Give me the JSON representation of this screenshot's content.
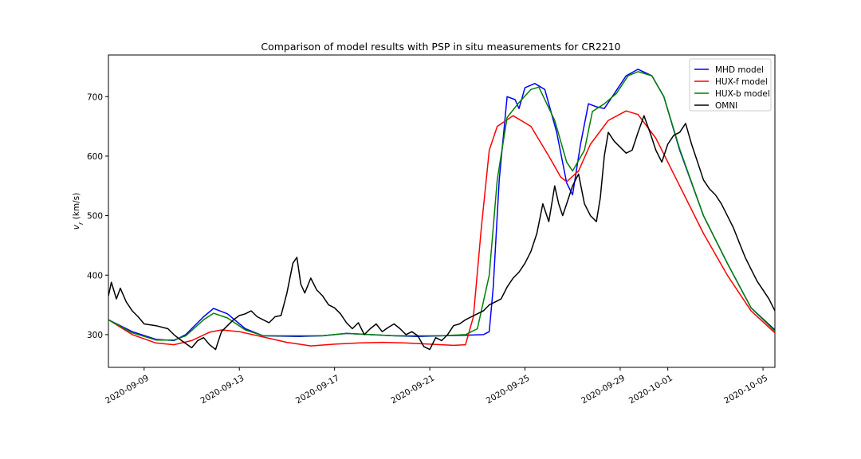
{
  "chart_data": {
    "type": "line",
    "title": "Comparison of model results with PSP in situ measurements for CR2210",
    "xlabel": "",
    "ylabel": "v_r (km/s)",
    "ylabel_main": "v",
    "ylabel_sub": "r",
    "ylabel_unit": " (km/s)",
    "xlim": [
      "2020-09-07T12:00",
      "2020-10-05T12:00"
    ],
    "ylim": [
      245,
      770
    ],
    "x_ticks": [
      "2020-09-09",
      "2020-09-13",
      "2020-09-17",
      "2020-09-21",
      "2020-09-25",
      "2020-09-29",
      "2020-10-01",
      "2020-10-05"
    ],
    "y_ticks": [
      300,
      400,
      500,
      600,
      700
    ],
    "grid": false,
    "legend_position": "top-right",
    "series": [
      {
        "name": "MHD model",
        "color": "#0000ff",
        "points": [
          [
            "2020-09-07T12:00",
            325
          ],
          [
            "2020-09-08T12:00",
            305
          ],
          [
            "2020-09-09T12:00",
            292
          ],
          [
            "2020-09-10T06:00",
            290
          ],
          [
            "2020-09-10T18:00",
            300
          ],
          [
            "2020-09-11T12:00",
            330
          ],
          [
            "2020-09-11T22:00",
            344
          ],
          [
            "2020-09-12T12:00",
            335
          ],
          [
            "2020-09-13T06:00",
            310
          ],
          [
            "2020-09-14T00:00",
            298
          ],
          [
            "2020-09-15T12:00",
            297
          ],
          [
            "2020-09-16T12:00",
            298
          ],
          [
            "2020-09-17T12:00",
            302
          ],
          [
            "2020-09-18T12:00",
            300
          ],
          [
            "2020-09-19T12:00",
            298
          ],
          [
            "2020-09-20T12:00",
            297
          ],
          [
            "2020-09-21T12:00",
            298
          ],
          [
            "2020-09-22T12:00",
            299
          ],
          [
            "2020-09-23T06:00",
            300
          ],
          [
            "2020-09-23T12:00",
            305
          ],
          [
            "2020-09-23T16:00",
            380
          ],
          [
            "2020-09-23T22:00",
            560
          ],
          [
            "2020-09-24T06:00",
            700
          ],
          [
            "2020-09-24T14:00",
            695
          ],
          [
            "2020-09-24T18:00",
            680
          ],
          [
            "2020-09-25T00:00",
            715
          ],
          [
            "2020-09-25T10:00",
            722
          ],
          [
            "2020-09-25T20:00",
            712
          ],
          [
            "2020-09-26T08:00",
            640
          ],
          [
            "2020-09-26T18:00",
            555
          ],
          [
            "2020-09-27T00:00",
            535
          ],
          [
            "2020-09-27T08:00",
            620
          ],
          [
            "2020-09-27T16:00",
            688
          ],
          [
            "2020-09-28T00:00",
            683
          ],
          [
            "2020-09-28T08:00",
            680
          ],
          [
            "2020-09-28T16:00",
            700
          ],
          [
            "2020-09-29T06:00",
            735
          ],
          [
            "2020-09-29T18:00",
            746
          ],
          [
            "2020-09-30T08:00",
            735
          ],
          [
            "2020-09-30T20:00",
            700
          ],
          [
            "2020-10-01T12:00",
            610
          ],
          [
            "2020-10-02T12:00",
            500
          ],
          [
            "2020-10-03T12:00",
            420
          ],
          [
            "2020-10-04T12:00",
            345
          ],
          [
            "2020-10-05T12:00",
            308
          ]
        ]
      },
      {
        "name": "HUX-f model",
        "color": "#ff0000",
        "points": [
          [
            "2020-09-07T12:00",
            325
          ],
          [
            "2020-09-08T12:00",
            300
          ],
          [
            "2020-09-09T12:00",
            286
          ],
          [
            "2020-09-10T06:00",
            283
          ],
          [
            "2020-09-11T00:00",
            290
          ],
          [
            "2020-09-11T18:00",
            304
          ],
          [
            "2020-09-12T06:00",
            308
          ],
          [
            "2020-09-13T00:00",
            305
          ],
          [
            "2020-09-14T00:00",
            296
          ],
          [
            "2020-09-15T00:00",
            287
          ],
          [
            "2020-09-16T00:00",
            281
          ],
          [
            "2020-09-17T00:00",
            284
          ],
          [
            "2020-09-18T00:00",
            286
          ],
          [
            "2020-09-19T00:00",
            287
          ],
          [
            "2020-09-20T00:00",
            286
          ],
          [
            "2020-09-21T00:00",
            284
          ],
          [
            "2020-09-22T00:00",
            282
          ],
          [
            "2020-09-22T12:00",
            283
          ],
          [
            "2020-09-22T20:00",
            330
          ],
          [
            "2020-09-23T04:00",
            480
          ],
          [
            "2020-09-23T12:00",
            610
          ],
          [
            "2020-09-23T20:00",
            650
          ],
          [
            "2020-09-24T12:00",
            668
          ],
          [
            "2020-09-25T06:00",
            650
          ],
          [
            "2020-09-26T00:00",
            600
          ],
          [
            "2020-09-26T12:00",
            565
          ],
          [
            "2020-09-26T18:00",
            557
          ],
          [
            "2020-09-27T06:00",
            575
          ],
          [
            "2020-09-27T18:00",
            620
          ],
          [
            "2020-09-28T12:00",
            660
          ],
          [
            "2020-09-29T06:00",
            676
          ],
          [
            "2020-09-29T18:00",
            670
          ],
          [
            "2020-09-30T12:00",
            630
          ],
          [
            "2020-10-01T12:00",
            550
          ],
          [
            "2020-10-02T12:00",
            470
          ],
          [
            "2020-10-03T12:00",
            400
          ],
          [
            "2020-10-04T12:00",
            340
          ],
          [
            "2020-10-05T12:00",
            303
          ]
        ]
      },
      {
        "name": "HUX-b model",
        "color": "#008000",
        "points": [
          [
            "2020-09-07T12:00",
            325
          ],
          [
            "2020-09-08T12:00",
            303
          ],
          [
            "2020-09-09T12:00",
            291
          ],
          [
            "2020-09-10T06:00",
            291
          ],
          [
            "2020-09-10T18:00",
            298
          ],
          [
            "2020-09-11T12:00",
            325
          ],
          [
            "2020-09-11T22:00",
            336
          ],
          [
            "2020-09-12T12:00",
            328
          ],
          [
            "2020-09-13T06:00",
            308
          ],
          [
            "2020-09-14T00:00",
            298
          ],
          [
            "2020-09-15T12:00",
            298
          ],
          [
            "2020-09-16T12:00",
            298
          ],
          [
            "2020-09-17T12:00",
            302
          ],
          [
            "2020-09-18T12:00",
            300
          ],
          [
            "2020-09-19T12:00",
            298
          ],
          [
            "2020-09-20T12:00",
            298
          ],
          [
            "2020-09-21T12:00",
            298
          ],
          [
            "2020-09-22T12:00",
            300
          ],
          [
            "2020-09-23T00:00",
            310
          ],
          [
            "2020-09-23T12:00",
            400
          ],
          [
            "2020-09-23T20:00",
            560
          ],
          [
            "2020-09-24T06:00",
            665
          ],
          [
            "2020-09-24T18:00",
            690
          ],
          [
            "2020-09-25T06:00",
            712
          ],
          [
            "2020-09-25T14:00",
            716
          ],
          [
            "2020-09-26T06:00",
            660
          ],
          [
            "2020-09-26T18:00",
            590
          ],
          [
            "2020-09-27T00:00",
            575
          ],
          [
            "2020-09-27T12:00",
            610
          ],
          [
            "2020-09-27T20:00",
            675
          ],
          [
            "2020-09-28T08:00",
            688
          ],
          [
            "2020-09-28T20:00",
            705
          ],
          [
            "2020-09-29T08:00",
            735
          ],
          [
            "2020-09-29T18:00",
            742
          ],
          [
            "2020-09-30T08:00",
            735
          ],
          [
            "2020-09-30T20:00",
            700
          ],
          [
            "2020-10-01T12:00",
            612
          ],
          [
            "2020-10-02T12:00",
            500
          ],
          [
            "2020-10-03T12:00",
            420
          ],
          [
            "2020-10-04T12:00",
            345
          ],
          [
            "2020-10-05T12:00",
            306
          ]
        ]
      },
      {
        "name": "OMNI",
        "color": "#000000",
        "points": [
          [
            "2020-09-07T12:00",
            365
          ],
          [
            "2020-09-07T15:00",
            388
          ],
          [
            "2020-09-07T20:00",
            360
          ],
          [
            "2020-09-08T00:00",
            378
          ],
          [
            "2020-09-08T06:00",
            355
          ],
          [
            "2020-09-08T12:00",
            340
          ],
          [
            "2020-09-08T18:00",
            330
          ],
          [
            "2020-09-09T00:00",
            318
          ],
          [
            "2020-09-09T12:00",
            315
          ],
          [
            "2020-09-10T00:00",
            310
          ],
          [
            "2020-09-10T06:00",
            300
          ],
          [
            "2020-09-10T12:00",
            292
          ],
          [
            "2020-09-10T18:00",
            285
          ],
          [
            "2020-09-11T00:00",
            278
          ],
          [
            "2020-09-11T06:00",
            290
          ],
          [
            "2020-09-11T12:00",
            295
          ],
          [
            "2020-09-11T18:00",
            283
          ],
          [
            "2020-09-12T00:00",
            275
          ],
          [
            "2020-09-12T06:00",
            305
          ],
          [
            "2020-09-12T12:00",
            315
          ],
          [
            "2020-09-12T18:00",
            325
          ],
          [
            "2020-09-13T00:00",
            332
          ],
          [
            "2020-09-13T06:00",
            335
          ],
          [
            "2020-09-13T12:00",
            340
          ],
          [
            "2020-09-13T18:00",
            330
          ],
          [
            "2020-09-14T00:00",
            325
          ],
          [
            "2020-09-14T06:00",
            320
          ],
          [
            "2020-09-14T12:00",
            330
          ],
          [
            "2020-09-14T18:00",
            332
          ],
          [
            "2020-09-15T00:00",
            370
          ],
          [
            "2020-09-15T06:00",
            420
          ],
          [
            "2020-09-15T10:00",
            430
          ],
          [
            "2020-09-15T14:00",
            385
          ],
          [
            "2020-09-15T18:00",
            370
          ],
          [
            "2020-09-16T00:00",
            395
          ],
          [
            "2020-09-16T06:00",
            375
          ],
          [
            "2020-09-16T12:00",
            365
          ],
          [
            "2020-09-16T18:00",
            350
          ],
          [
            "2020-09-17T00:00",
            345
          ],
          [
            "2020-09-17T06:00",
            335
          ],
          [
            "2020-09-17T12:00",
            320
          ],
          [
            "2020-09-17T18:00",
            310
          ],
          [
            "2020-09-18T00:00",
            320
          ],
          [
            "2020-09-18T06:00",
            300
          ],
          [
            "2020-09-18T12:00",
            310
          ],
          [
            "2020-09-18T18:00",
            318
          ],
          [
            "2020-09-19T00:00",
            305
          ],
          [
            "2020-09-19T06:00",
            312
          ],
          [
            "2020-09-19T12:00",
            318
          ],
          [
            "2020-09-19T18:00",
            310
          ],
          [
            "2020-09-20T00:00",
            300
          ],
          [
            "2020-09-20T06:00",
            305
          ],
          [
            "2020-09-20T12:00",
            298
          ],
          [
            "2020-09-20T18:00",
            280
          ],
          [
            "2020-09-21T00:00",
            275
          ],
          [
            "2020-09-21T06:00",
            295
          ],
          [
            "2020-09-21T12:00",
            290
          ],
          [
            "2020-09-21T18:00",
            300
          ],
          [
            "2020-09-22T00:00",
            315
          ],
          [
            "2020-09-22T06:00",
            318
          ],
          [
            "2020-09-22T12:00",
            325
          ],
          [
            "2020-09-22T18:00",
            330
          ],
          [
            "2020-09-23T00:00",
            335
          ],
          [
            "2020-09-23T06:00",
            340
          ],
          [
            "2020-09-23T12:00",
            350
          ],
          [
            "2020-09-23T18:00",
            355
          ],
          [
            "2020-09-24T00:00",
            360
          ],
          [
            "2020-09-24T06:00",
            380
          ],
          [
            "2020-09-24T12:00",
            395
          ],
          [
            "2020-09-24T18:00",
            405
          ],
          [
            "2020-09-25T00:00",
            420
          ],
          [
            "2020-09-25T06:00",
            440
          ],
          [
            "2020-09-25T12:00",
            470
          ],
          [
            "2020-09-25T18:00",
            520
          ],
          [
            "2020-09-26T00:00",
            490
          ],
          [
            "2020-09-26T06:00",
            550
          ],
          [
            "2020-09-26T10:00",
            520
          ],
          [
            "2020-09-26T14:00",
            500
          ],
          [
            "2020-09-26T18:00",
            520
          ],
          [
            "2020-09-27T00:00",
            550
          ],
          [
            "2020-09-27T06:00",
            570
          ],
          [
            "2020-09-27T12:00",
            520
          ],
          [
            "2020-09-27T18:00",
            500
          ],
          [
            "2020-09-28T00:00",
            490
          ],
          [
            "2020-09-28T04:00",
            530
          ],
          [
            "2020-09-28T08:00",
            600
          ],
          [
            "2020-09-28T12:00",
            640
          ],
          [
            "2020-09-28T18:00",
            625
          ],
          [
            "2020-09-29T00:00",
            615
          ],
          [
            "2020-09-29T06:00",
            605
          ],
          [
            "2020-09-29T12:00",
            610
          ],
          [
            "2020-09-29T18:00",
            640
          ],
          [
            "2020-09-30T00:00",
            668
          ],
          [
            "2020-09-30T06:00",
            640
          ],
          [
            "2020-09-30T12:00",
            610
          ],
          [
            "2020-09-30T18:00",
            590
          ],
          [
            "2020-10-01T00:00",
            620
          ],
          [
            "2020-10-01T06:00",
            635
          ],
          [
            "2020-10-01T12:00",
            640
          ],
          [
            "2020-10-01T18:00",
            655
          ],
          [
            "2020-10-02T00:00",
            620
          ],
          [
            "2020-10-02T06:00",
            590
          ],
          [
            "2020-10-02T12:00",
            560
          ],
          [
            "2020-10-02T18:00",
            545
          ],
          [
            "2020-10-03T00:00",
            535
          ],
          [
            "2020-10-03T06:00",
            520
          ],
          [
            "2020-10-03T12:00",
            500
          ],
          [
            "2020-10-03T18:00",
            480
          ],
          [
            "2020-10-04T00:00",
            455
          ],
          [
            "2020-10-04T06:00",
            430
          ],
          [
            "2020-10-04T12:00",
            410
          ],
          [
            "2020-10-04T18:00",
            390
          ],
          [
            "2020-10-05T00:00",
            375
          ],
          [
            "2020-10-05T06:00",
            360
          ],
          [
            "2020-10-05T12:00",
            340
          ]
        ]
      }
    ]
  }
}
